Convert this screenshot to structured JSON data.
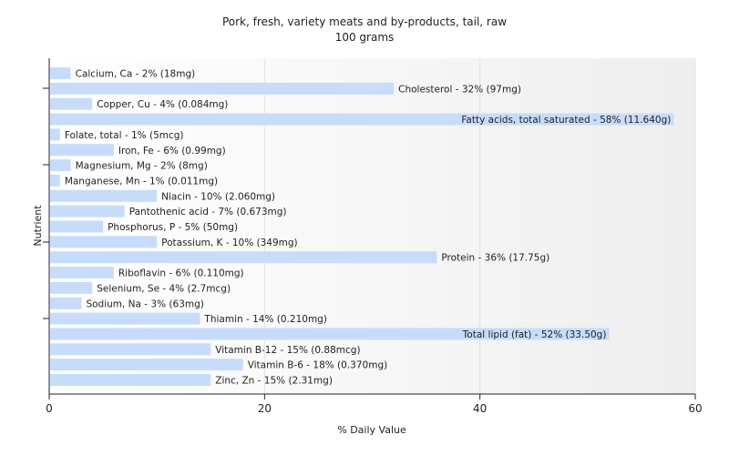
{
  "chart_data": {
    "type": "bar",
    "orientation": "horizontal",
    "title": "Pork, fresh, variety meats and by-products, tail, raw",
    "subtitle": "100 grams",
    "xlabel": "% Daily Value",
    "ylabel": "Nutrient",
    "xlim": [
      0,
      60
    ],
    "xticks": [
      0,
      20,
      40,
      60
    ],
    "grid": true,
    "bar_color": "#c6dcfa",
    "background_gradient": [
      "#ffffff",
      "#eeeeee"
    ],
    "categories": [
      "Calcium, Ca",
      "Cholesterol",
      "Copper, Cu",
      "Fatty acids, total saturated",
      "Folate, total",
      "Iron, Fe",
      "Magnesium, Mg",
      "Manganese, Mn",
      "Niacin",
      "Pantothenic acid",
      "Phosphorus, P",
      "Potassium, K",
      "Protein",
      "Riboflavin",
      "Selenium, Se",
      "Sodium, Na",
      "Thiamin",
      "Total lipid (fat)",
      "Vitamin B-12",
      "Vitamin B-6",
      "Zinc, Zn"
    ],
    "values": [
      2,
      32,
      4,
      58,
      1,
      6,
      2,
      1,
      10,
      7,
      5,
      10,
      36,
      6,
      4,
      3,
      14,
      52,
      15,
      18,
      15
    ],
    "labels": [
      "Calcium, Ca - 2% (18mg)",
      "Cholesterol - 32% (97mg)",
      "Copper, Cu - 4% (0.084mg)",
      "Fatty acids, total saturated - 58% (11.640g)",
      "Folate, total - 1% (5mcg)",
      "Iron, Fe - 6% (0.99mg)",
      "Magnesium, Mg - 2% (8mg)",
      "Manganese, Mn - 1% (0.011mg)",
      "Niacin - 10% (2.060mg)",
      "Pantothenic acid - 7% (0.673mg)",
      "Phosphorus, P - 5% (50mg)",
      "Potassium, K - 10% (349mg)",
      "Protein - 36% (17.75g)",
      "Riboflavin - 6% (0.110mg)",
      "Selenium, Se - 4% (2.7mcg)",
      "Sodium, Na - 3% (63mg)",
      "Thiamin - 14% (0.210mg)",
      "Total lipid (fat) - 52% (33.50g)",
      "Vitamin B-12 - 15% (0.88mcg)",
      "Vitamin B-6 - 18% (0.370mg)",
      "Zinc, Zn - 15% (2.31mg)"
    ],
    "label_inside": [
      false,
      false,
      false,
      true,
      false,
      false,
      false,
      false,
      false,
      false,
      false,
      false,
      false,
      false,
      false,
      false,
      false,
      true,
      false,
      false,
      false
    ]
  }
}
